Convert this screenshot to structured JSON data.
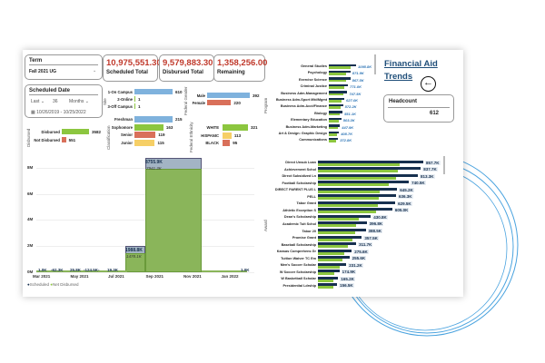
{
  "slicers": {
    "term": {
      "label": "Term",
      "value": "Fall 2021 UG"
    },
    "date": {
      "label": "Scheduled Date",
      "mode": "Last",
      "count": "36",
      "unit": "Months",
      "range": "10/26/2019 - 10/25/2022"
    }
  },
  "kpis": [
    {
      "value": "10,975,551.30",
      "label": "Scheduled Total"
    },
    {
      "value": "9,579,883.30",
      "label": "Disbursed Total"
    },
    {
      "value": "1,358,256.00",
      "label": "Remaining"
    }
  ],
  "title": "Financial Aid Trends",
  "headcount": {
    "label": "Headcount",
    "value": "612"
  },
  "colors": {
    "blue": "#7fb2dd",
    "green": "#8cc63f",
    "red": "#d9705a",
    "yellow": "#f6cf66",
    "navy": "#17304f",
    "kpi_red": "#c0392b",
    "title_blue": "#1f4e79"
  },
  "site": {
    "axis": "Site",
    "items": [
      {
        "label": "1-On Campus",
        "value": 610
      },
      {
        "label": "2-Online",
        "value": 1
      },
      {
        "label": "3-Off Campus",
        "value": 1
      }
    ]
  },
  "gender": {
    "axis": "Federal Gender",
    "items": [
      {
        "label": "Male",
        "value": 392
      },
      {
        "label": "Female",
        "value": 220
      }
    ]
  },
  "classification": {
    "axis": "Classification",
    "items": [
      {
        "label": "Freshman",
        "value": 215
      },
      {
        "label": "Sophomore",
        "value": 163
      },
      {
        "label": "Senior",
        "value": 119
      },
      {
        "label": "Junior",
        "value": 115
      }
    ]
  },
  "ethnicity": {
    "axis": "Federal Ethnicity",
    "items": [
      {
        "label": "WHITE",
        "value": 321
      },
      {
        "label": "HISPANIC",
        "value": 113
      },
      {
        "label": "BLACK",
        "value": 95
      }
    ]
  },
  "disbursed": {
    "axis": "Disbursed",
    "items": [
      {
        "label": "Disbursed",
        "value": 3582
      },
      {
        "label": "Not Disbursed",
        "value": 551
      }
    ]
  },
  "program": {
    "axis": "Program",
    "items": [
      {
        "label": "General Studies",
        "value": "1095.8K",
        "v": 1095.8
      },
      {
        "label": "Psychology",
        "value": "871.9K",
        "v": 871.9
      },
      {
        "label": "Exercise Science",
        "value": "867.5K",
        "v": 867.5
      },
      {
        "label": "Criminal Justice",
        "value": "771.0K",
        "v": 771.0
      },
      {
        "label": "Business Adm-Management",
        "value": "747.5K",
        "v": 747.5
      },
      {
        "label": "Business Adm-Sport Mkt/Mgmt",
        "value": "627.0K",
        "v": 627.0
      },
      {
        "label": "Business Adm-Acct/Finance",
        "value": "572.2K",
        "v": 572.2
      },
      {
        "label": "Biology",
        "value": "551.1K",
        "v": 551.1
      },
      {
        "label": "Elementary Education",
        "value": "503.3K",
        "v": 503.3
      },
      {
        "label": "Business Adm-Marketing",
        "value": "447.9K",
        "v": 447.9
      },
      {
        "label": "Art & Design: Graphic Design",
        "value": "408.7K",
        "v": 408.7
      },
      {
        "label": "Communications",
        "value": "372.8K",
        "v": 372.8
      }
    ]
  },
  "chart_data": [
    {
      "type": "bar",
      "title": "",
      "ylabel": "",
      "ylim": [
        0,
        9000000
      ],
      "yticks": [
        "0M",
        "2M",
        "4M",
        "6M",
        "8M"
      ],
      "xticks": [
        "Mar 2021",
        "May 2021",
        "Jul 2021",
        "Sep 2021",
        "Nov 2021",
        "Jan 2022"
      ],
      "legend": {
        "position": "bottom-left",
        "entries": [
          "Scheduled",
          "Net Disbursed"
        ]
      },
      "small_labels": [
        "1.0K",
        "-62.3K",
        "25.8K",
        "-124.5K-",
        "19.3K"
      ],
      "end_label": "1.0K",
      "series": [
        {
          "name": "Scheduled",
          "values": [
            {
              "period": "Jul 2021",
              "value": 1988800,
              "label": "1988.8K"
            },
            {
              "period": "Sep 2021",
              "value": 8755900,
              "label": "8755.9K"
            }
          ]
        },
        {
          "name": "Net Disbursed",
          "values": [
            {
              "period": "Jul 2021",
              "value": 1478100,
              "label": "1478.1K"
            },
            {
              "period": "Sep 2021",
              "value": 7941300,
              "label": "7941.3K"
            }
          ]
        }
      ]
    },
    {
      "type": "bar",
      "orientation": "horizontal",
      "ylabel": "Award",
      "categories": [
        "Direct Unsub Loan",
        "Achievement Schol",
        "Direct Subsidized Ln",
        "Football Scholarship",
        "DIRECT PARENT PLUS L",
        "PELL",
        "Tabor Grant",
        "Athletic Exception S",
        "Dean's Scholarship",
        "Academic Tuit Schol",
        "Tabor 20",
        "Promise Grant",
        "Baseball Scholarship",
        "Kansas Comprehens Gr",
        "Tuition Waiver TC Em",
        "Men's Soccer Scholar",
        "W Soccer Scholarship",
        "W Basketball Scholar",
        "Presidential Ldrship"
      ],
      "series": [
        {
          "name": "Scheduled",
          "values": [
            857.7,
            837.7,
            813.3,
            740.5,
            645.2,
            636.3,
            629.5,
            605.0,
            430.8,
            396.8,
            388.5,
            357.5,
            311.7,
            275.6,
            255.6,
            231.2,
            174.9,
            165.2,
            156.5
          ],
          "labels": [
            "857.7K",
            "837.7K",
            "813.3K",
            "740.5K",
            "645.2K",
            "636.3K",
            "629.5K",
            "605.0K",
            "430.8K",
            "396.8K",
            "388.5K",
            "357.5K",
            "311.7K",
            "275.6K",
            "255.6K",
            "231.2K",
            "174.9K",
            "165.2K",
            "156.5K"
          ]
        }
      ]
    }
  ]
}
